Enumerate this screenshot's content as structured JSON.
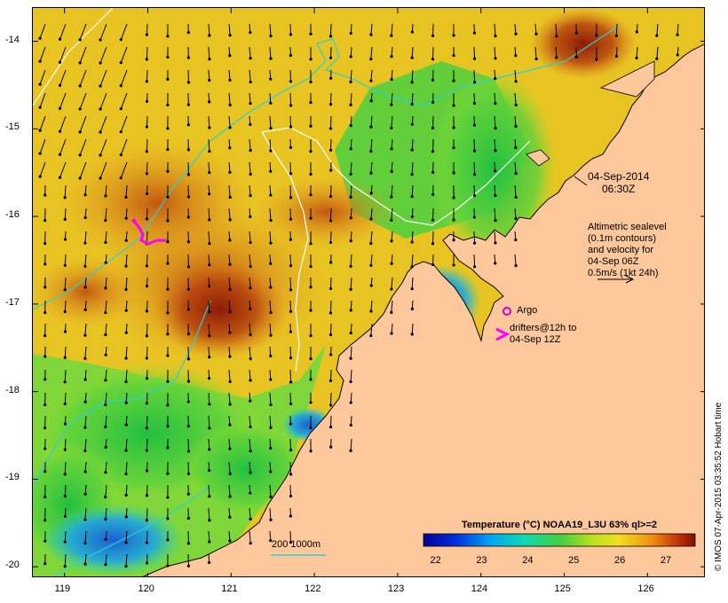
{
  "map": {
    "lon_ticks": [
      "119",
      "120",
      "121",
      "122",
      "123",
      "124",
      "125",
      "126"
    ],
    "lat_ticks": [
      "-14",
      "-15",
      "-16",
      "-17",
      "-18",
      "-19",
      "-20"
    ],
    "lon_range": [
      118.62,
      126.7
    ],
    "lat_range": [
      -20.13,
      -13.62
    ]
  },
  "annotations": {
    "date": "04-Sep-2014",
    "time": "06:30Z",
    "altimetry_lines": [
      "Altimetric sealevel",
      "(0.1m contours)",
      "and velocity for",
      "04-Sep 06Z",
      "0.5m/s (1kt 24h)"
    ],
    "argo_label": "Argo",
    "drifters_lines": [
      "drifters@12h to",
      "04-Sep 12Z"
    ],
    "depth_legend": "200  1000m"
  },
  "colorbar": {
    "title": "Temperature (°C) NOAA19_L3U 63% ql>=2",
    "labels": [
      "22",
      "23",
      "24",
      "25",
      "26",
      "27"
    ],
    "range": [
      21.7,
      27.6
    ]
  },
  "credit": "© IMOS 07-Apr-2015 03:35:52 Hobart time",
  "colors": {
    "land": "#fcc79a",
    "contour_200m": "#ffffff",
    "contour_1000m": "#27d3d3",
    "drifter": "#ff00ff",
    "argo": "#cc00cc"
  }
}
